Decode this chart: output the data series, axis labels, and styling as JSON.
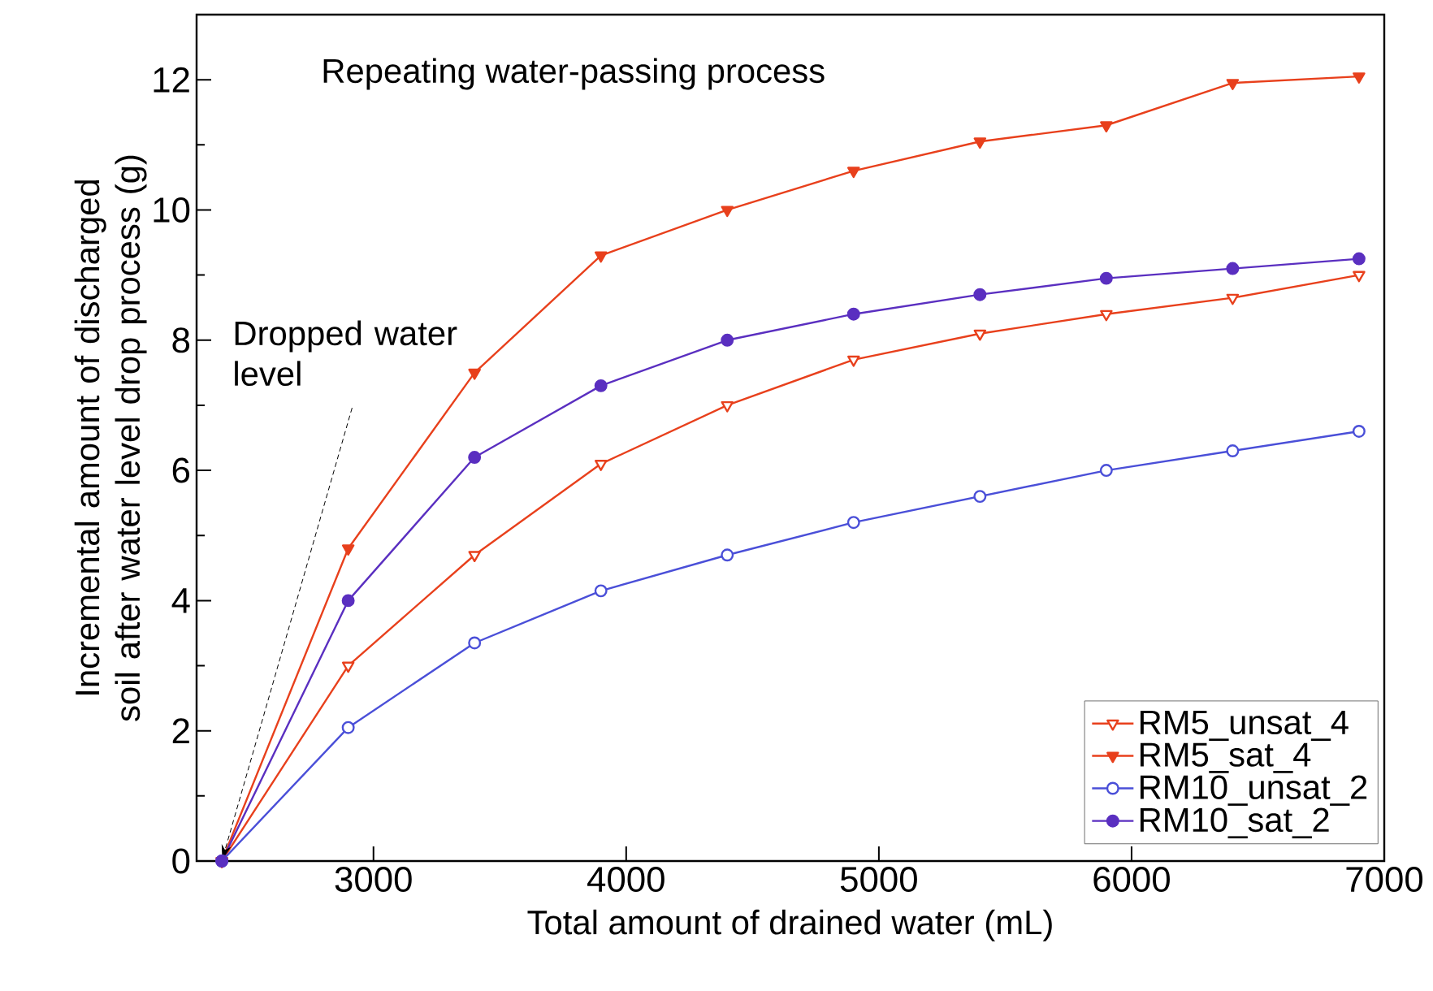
{
  "chart_data": {
    "type": "line",
    "xlabel": "Total amount of drained water (mL)",
    "ylabel": "Incremental amount of discharged soil after water level drop process (g)",
    "x": [
      2400,
      2900,
      3400,
      3900,
      4400,
      4900,
      5400,
      5900,
      6400,
      6900
    ],
    "series": [
      {
        "name": "RM5_unsat_4",
        "color": "#e8401c",
        "marker": "triangle",
        "values": [
          0,
          3.0,
          4.7,
          6.1,
          7.0,
          7.7,
          8.1,
          8.4,
          8.65,
          9.0
        ]
      },
      {
        "name": "RM5_sat_4",
        "color": "#e8401c",
        "marker": "triangle",
        "values": [
          0,
          4.8,
          7.5,
          9.3,
          10.0,
          10.6,
          11.05,
          11.3,
          11.95,
          12.05
        ]
      },
      {
        "name": "RM10_unsat_2",
        "color": "#4a4fd8",
        "marker": "circle",
        "values": [
          0,
          2.05,
          3.35,
          4.15,
          4.7,
          5.2,
          5.6,
          6.0,
          6.3,
          6.6
        ]
      },
      {
        "name": "RM10_sat_2",
        "color": "#5a2fc0",
        "marker": "circle",
        "values": [
          0,
          4.0,
          6.2,
          7.3,
          8.0,
          8.4,
          8.7,
          8.95,
          9.1,
          9.25
        ]
      }
    ],
    "xlim": [
      2300,
      7000
    ],
    "xticks": [
      3000,
      4000,
      5000,
      6000,
      7000
    ],
    "ylim": [
      0,
      13
    ],
    "yticks": [
      0,
      {
        "value": 1,
        "label": null
      },
      2,
      {
        "value": 3,
        "label": null
      },
      4,
      {
        "value": 5,
        "label": null
      },
      6,
      {
        "value": 7,
        "label": null
      },
      8,
      {
        "value": 9,
        "label": null
      },
      10,
      {
        "value": 11,
        "label": null
      },
      12
    ],
    "annotations": [
      "Repeating water-passing process",
      {
        "text": "Dropped water level",
        "x": 2400,
        "y": 0
      }
    ],
    "legend": "bottom right",
    "grid": false,
    "line_style": "solid"
  }
}
